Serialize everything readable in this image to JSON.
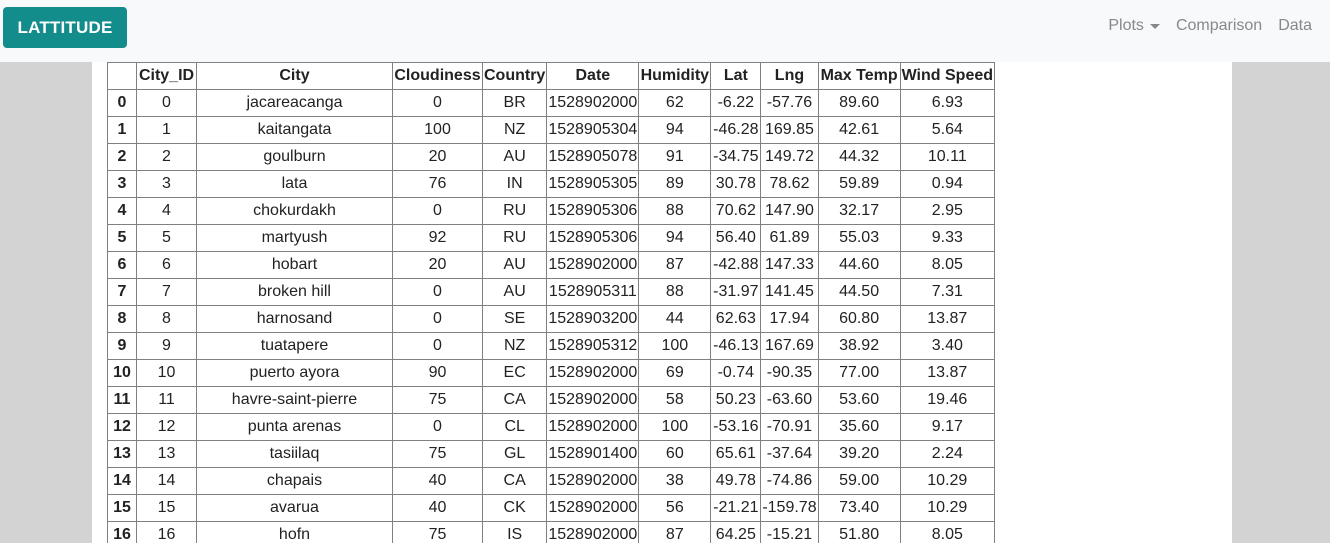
{
  "navbar": {
    "brand": "LATTITUDE",
    "links": [
      {
        "label": "Plots",
        "dropdown": true
      },
      {
        "label": "Comparison"
      },
      {
        "label": "Data"
      }
    ]
  },
  "colors": {
    "brand": "#138c8c",
    "navbar_bg": "#f8f9fa",
    "page_bg": "#d3d3d3"
  },
  "table": {
    "columns": [
      "",
      "City_ID",
      "City",
      "Cloudiness",
      "Country",
      "Date",
      "Humidity",
      "Lat",
      "Lng",
      "Max Temp",
      "Wind Speed"
    ],
    "rows": [
      [
        "0",
        "0",
        "jacareacanga",
        "0",
        "BR",
        "1528902000",
        "62",
        "-6.22",
        "-57.76",
        "89.60",
        "6.93"
      ],
      [
        "1",
        "1",
        "kaitangata",
        "100",
        "NZ",
        "1528905304",
        "94",
        "-46.28",
        "169.85",
        "42.61",
        "5.64"
      ],
      [
        "2",
        "2",
        "goulburn",
        "20",
        "AU",
        "1528905078",
        "91",
        "-34.75",
        "149.72",
        "44.32",
        "10.11"
      ],
      [
        "3",
        "3",
        "lata",
        "76",
        "IN",
        "1528905305",
        "89",
        "30.78",
        "78.62",
        "59.89",
        "0.94"
      ],
      [
        "4",
        "4",
        "chokurdakh",
        "0",
        "RU",
        "1528905306",
        "88",
        "70.62",
        "147.90",
        "32.17",
        "2.95"
      ],
      [
        "5",
        "5",
        "martyush",
        "92",
        "RU",
        "1528905306",
        "94",
        "56.40",
        "61.89",
        "55.03",
        "9.33"
      ],
      [
        "6",
        "6",
        "hobart",
        "20",
        "AU",
        "1528902000",
        "87",
        "-42.88",
        "147.33",
        "44.60",
        "8.05"
      ],
      [
        "7",
        "7",
        "broken hill",
        "0",
        "AU",
        "1528905311",
        "88",
        "-31.97",
        "141.45",
        "44.50",
        "7.31"
      ],
      [
        "8",
        "8",
        "harnosand",
        "0",
        "SE",
        "1528903200",
        "44",
        "62.63",
        "17.94",
        "60.80",
        "13.87"
      ],
      [
        "9",
        "9",
        "tuatapere",
        "0",
        "NZ",
        "1528905312",
        "100",
        "-46.13",
        "167.69",
        "38.92",
        "3.40"
      ],
      [
        "10",
        "10",
        "puerto ayora",
        "90",
        "EC",
        "1528902000",
        "69",
        "-0.74",
        "-90.35",
        "77.00",
        "13.87"
      ],
      [
        "11",
        "11",
        "havre-saint-pierre",
        "75",
        "CA",
        "1528902000",
        "58",
        "50.23",
        "-63.60",
        "53.60",
        "19.46"
      ],
      [
        "12",
        "12",
        "punta arenas",
        "0",
        "CL",
        "1528902000",
        "100",
        "-53.16",
        "-70.91",
        "35.60",
        "9.17"
      ],
      [
        "13",
        "13",
        "tasiilaq",
        "75",
        "GL",
        "1528901400",
        "60",
        "65.61",
        "-37.64",
        "39.20",
        "2.24"
      ],
      [
        "14",
        "14",
        "chapais",
        "40",
        "CA",
        "1528902000",
        "38",
        "49.78",
        "-74.86",
        "59.00",
        "10.29"
      ],
      [
        "15",
        "15",
        "avarua",
        "40",
        "CK",
        "1528902000",
        "56",
        "-21.21",
        "-159.78",
        "73.40",
        "10.29"
      ],
      [
        "16",
        "16",
        "hofn",
        "75",
        "IS",
        "1528902000",
        "87",
        "64.25",
        "-15.21",
        "51.80",
        "8.05"
      ]
    ]
  }
}
